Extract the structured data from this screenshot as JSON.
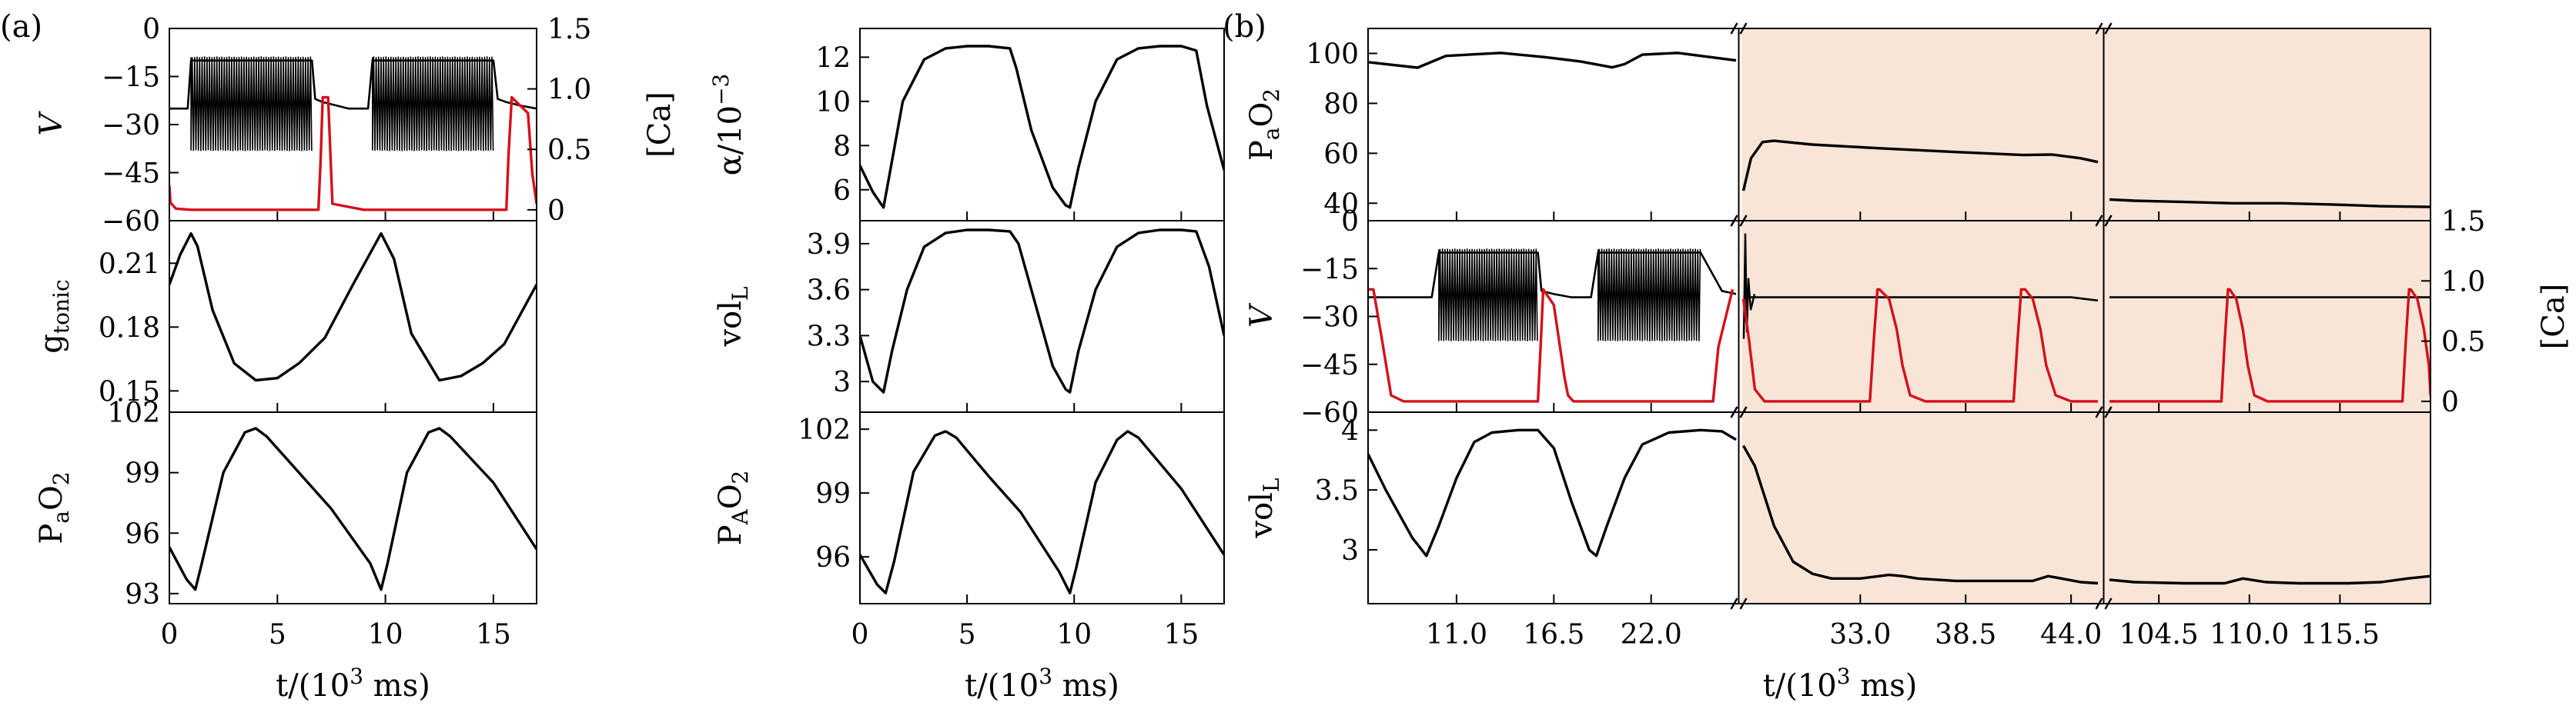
{
  "panel_labels": {
    "a": "(a)",
    "b": "(b)"
  },
  "colors": {
    "black_trace": "#000000",
    "red_trace": "#d4101a",
    "shade": "#f9e5d8"
  },
  "chart_data": [
    {
      "id": "a-V",
      "type": "line",
      "ylabel": "V",
      "y2label": "[Ca]",
      "xlim": [
        0,
        17
      ],
      "ylim": [
        -60,
        0
      ],
      "y2lim": [
        -0.09,
        1.5
      ],
      "yticks": [
        0,
        -15,
        -30,
        -45,
        -60
      ],
      "y2ticks": [
        1.5,
        1.0,
        0.5,
        0
      ],
      "series": [
        {
          "key": "V",
          "color": "#000000",
          "kind": "burst-voltage",
          "x": [
            0,
            0.5,
            0.85,
            1.0,
            6.6,
            6.75,
            7.1,
            7.7,
            8.3,
            9.2,
            9.4,
            15.0,
            15.2,
            15.6,
            16.2,
            17
          ],
          "y": [
            -25,
            -25,
            -25,
            -10,
            -10,
            -22,
            -23,
            -24,
            -25,
            -25,
            -10,
            -10,
            -22,
            -23,
            -24,
            -25
          ],
          "burst_windows": [
            [
              1.0,
              6.6
            ],
            [
              9.4,
              15.0
            ]
          ],
          "burst_min": -38,
          "burst_max": -9
        },
        {
          "key": "Ca",
          "color": "#d4101a",
          "axis": "right",
          "x": [
            0,
            0.05,
            0.3,
            1.0,
            3,
            6.9,
            7.0,
            7.1,
            7.35,
            7.55,
            9,
            12,
            15.6,
            15.7,
            15.85,
            16.6,
            16.8,
            17
          ],
          "y": [
            0.2,
            0.06,
            0.01,
            0.0,
            0.0,
            0.0,
            0.4,
            0.93,
            0.93,
            0.05,
            0.0,
            0.0,
            0.0,
            0.45,
            0.93,
            0.8,
            0.3,
            0.05
          ]
        }
      ]
    },
    {
      "id": "a-g",
      "type": "line",
      "ylabel": "g",
      "ylabel_sub": "tonic",
      "xlim": [
        0,
        17
      ],
      "ylim": [
        0.14,
        0.23
      ],
      "yticks": [
        0.21,
        0.18,
        0.15
      ],
      "series": [
        {
          "key": "gtonic",
          "color": "#000000",
          "x": [
            0,
            0.5,
            1.0,
            1.3,
            2.0,
            3.0,
            4.0,
            5,
            6,
            7.2,
            8.5,
            9.8,
            10.4,
            11.2,
            12.5,
            13.5,
            14.5,
            15.5,
            17
          ],
          "y": [
            0.2,
            0.214,
            0.224,
            0.218,
            0.188,
            0.163,
            0.155,
            0.156,
            0.163,
            0.175,
            0.2,
            0.224,
            0.212,
            0.177,
            0.155,
            0.157,
            0.163,
            0.172,
            0.2
          ]
        }
      ]
    },
    {
      "id": "a-PaO2",
      "type": "line",
      "ylabel": "P",
      "ylabel_sub": "a",
      "ylabel_tail": "O",
      "ylabel_tail_sub": "2",
      "xlim": [
        0,
        17
      ],
      "ylim": [
        92.5,
        102
      ],
      "yticks": [
        102,
        99,
        96,
        93
      ],
      "xticks": [
        0,
        5,
        10,
        15
      ],
      "xlabel": "t/(10",
      "xlabel_sup": "3",
      "xlabel_tail": " ms)",
      "series": [
        {
          "key": "PaO2",
          "color": "#000000",
          "x": [
            0,
            0.8,
            1.2,
            1.5,
            2.5,
            3.5,
            4.0,
            4.5,
            6,
            7.5,
            9.3,
            9.8,
            10.1,
            11,
            12,
            12.5,
            13,
            15,
            17
          ],
          "y": [
            95.3,
            93.7,
            93.2,
            94.5,
            99.0,
            101.0,
            101.2,
            100.8,
            99.0,
            97.2,
            94.5,
            93.2,
            94.5,
            99.0,
            101.0,
            101.2,
            100.8,
            98.5,
            95.2
          ]
        }
      ]
    },
    {
      "id": "a-alpha",
      "type": "line",
      "ylabel": "α/10",
      "ylabel_sup": "−3",
      "xlim": [
        0,
        17
      ],
      "ylim": [
        4.6,
        13.3
      ],
      "yticks": [
        12,
        10,
        8,
        6
      ],
      "series": [
        {
          "key": "alpha",
          "color": "#000000",
          "x": [
            0,
            0.6,
            1.1,
            1.4,
            2,
            3,
            4,
            5,
            6,
            7,
            7.3,
            8,
            9,
            9.6,
            9.8,
            10.2,
            11,
            12,
            13,
            14,
            15,
            15.7,
            16.2,
            17
          ],
          "y": [
            7.1,
            5.9,
            5.2,
            6.8,
            10,
            11.9,
            12.4,
            12.5,
            12.5,
            12.4,
            11.5,
            8.7,
            6.1,
            5.3,
            5.2,
            7,
            10,
            11.9,
            12.4,
            12.5,
            12.5,
            12.3,
            9.8,
            6.9
          ]
        }
      ]
    },
    {
      "id": "a-volL",
      "type": "line",
      "ylabel": "vol",
      "ylabel_sub": "L",
      "xlim": [
        0,
        17
      ],
      "ylim": [
        2.8,
        4.05
      ],
      "yticks": [
        3.9,
        3.6,
        3.3,
        3.0
      ],
      "series": [
        {
          "key": "volL",
          "color": "#000000",
          "x": [
            0,
            0.6,
            1.1,
            1.5,
            2.2,
            3,
            4,
            5,
            6,
            7,
            7.4,
            8,
            9,
            9.6,
            9.8,
            10.2,
            11,
            12,
            13,
            14,
            15,
            15.7,
            16.3,
            17
          ],
          "y": [
            3.3,
            3.0,
            2.93,
            3.2,
            3.6,
            3.88,
            3.97,
            3.99,
            3.99,
            3.98,
            3.9,
            3.6,
            3.1,
            2.95,
            2.93,
            3.2,
            3.6,
            3.88,
            3.97,
            3.99,
            3.99,
            3.98,
            3.75,
            3.3
          ]
        }
      ]
    },
    {
      "id": "a-PAO2",
      "type": "line",
      "ylabel": "P",
      "ylabel_sub": "A",
      "ylabel_tail": "O",
      "ylabel_tail_sub": "2",
      "xlim": [
        0,
        17
      ],
      "ylim": [
        93.8,
        102.8
      ],
      "yticks": [
        102,
        99,
        96
      ],
      "xticks": [
        0,
        5,
        10,
        15
      ],
      "xlabel": "t/(10",
      "xlabel_sup": "3",
      "xlabel_tail": " ms)",
      "series": [
        {
          "key": "PAO2",
          "color": "#000000",
          "x": [
            0,
            0.8,
            1.2,
            1.6,
            2.5,
            3.5,
            4.0,
            4.5,
            6,
            7.5,
            9.3,
            9.8,
            10.1,
            11,
            12,
            12.5,
            13,
            15,
            17
          ],
          "y": [
            96.1,
            94.7,
            94.3,
            95.8,
            100,
            101.7,
            101.9,
            101.6,
            99.8,
            98.1,
            95.3,
            94.3,
            95.5,
            99.5,
            101.5,
            101.9,
            101.6,
            99.2,
            96.1
          ]
        }
      ]
    },
    {
      "id": "b-PaO2",
      "type": "line",
      "broken_x": true,
      "ylabel": "P",
      "ylabel_sub": "a",
      "ylabel_tail": "O",
      "ylabel_tail_sub": "2",
      "ylim": [
        33,
        110
      ],
      "yticks": [
        100,
        80,
        60,
        40
      ],
      "shaded": "from-break-1",
      "series": [
        {
          "key": "PaO2b",
          "color": "#000000",
          "x": [
            6.0,
            8.8,
            10.4,
            13.5,
            16.0,
            18.0,
            19.8,
            20.5,
            21.5,
            23.5,
            26.8,
            26.9,
            27.3,
            27.9,
            28.5,
            30.5,
            34,
            38,
            41.5,
            43,
            44.5,
            45.4,
            101.5,
            103,
            106,
            109,
            112,
            115,
            118,
            121
          ],
          "y": [
            96.5,
            94.3,
            99.0,
            100.2,
            98.5,
            96.8,
            94.4,
            95.7,
            99.5,
            100.2,
            97.2,
            45,
            58,
            64.5,
            65,
            63.5,
            62,
            60.5,
            59.3,
            59.5,
            58,
            56.5,
            41.5,
            41,
            40.5,
            40,
            40,
            39.5,
            38.8,
            38.5
          ]
        }
      ]
    },
    {
      "id": "b-V",
      "type": "line",
      "broken_x": true,
      "ylabel": "V",
      "y2label": "[Ca]",
      "ylim": [
        -60,
        0
      ],
      "y2lim": [
        -0.09,
        1.5
      ],
      "yticks": [
        0,
        -15,
        -30,
        -45,
        -60
      ],
      "y2ticks": [
        1.5,
        1.0,
        0.5,
        0
      ],
      "shaded": "from-break-1",
      "series": [
        {
          "key": "Vb",
          "color": "#000000",
          "kind": "burst-voltage",
          "x": [
            6.0,
            9.6,
            10.0,
            15.6,
            15.8,
            16.5,
            17.5,
            18.6,
            19.0,
            24.8,
            26.0,
            26.8,
            26.9,
            28.0,
            44.0,
            45.4,
            101.5,
            121
          ],
          "y": [
            -24,
            -24,
            -10,
            -10,
            -22,
            -23,
            -24,
            -24,
            -10,
            -10,
            -22,
            -23,
            -24,
            -24,
            -24,
            -25,
            -24,
            -24
          ],
          "burst_windows": [
            [
              10.0,
              15.6
            ],
            [
              19.0,
              24.8
            ]
          ],
          "burst_min": -37.5,
          "burst_max": -9,
          "spike_after_break": true
        },
        {
          "key": "Cab",
          "color": "#d4101a",
          "axis": "right",
          "x": [
            6.0,
            6.3,
            6.8,
            7.3,
            8,
            12,
            15.6,
            15.75,
            15.9,
            16.5,
            17.1,
            17.3,
            17.6,
            19,
            22,
            24.8,
            25.5,
            25.8,
            26.6,
            26.9,
            27.2,
            27.5,
            28.0,
            30.5,
            31.5,
            33.5,
            33.7,
            33.9,
            34.0,
            34.5,
            34.9,
            35.2,
            35.6,
            36.4,
            40,
            41.0,
            41.2,
            41.4,
            41.6,
            42,
            42.4,
            42.7,
            43.2,
            44.0,
            45.4,
            101.5,
            105,
            108.3,
            108.5,
            108.7,
            108.8,
            109.2,
            109.6,
            109.9,
            110.3,
            111.1,
            116,
            119.3,
            119.5,
            119.7,
            119.8,
            120.2,
            120.6,
            120.9,
            121
          ],
          "y": [
            0.93,
            0.93,
            0.5,
            0.05,
            0.0,
            0.0,
            0.0,
            0.45,
            0.93,
            0.8,
            0.2,
            0.05,
            0.0,
            0.0,
            0.0,
            0.0,
            0.0,
            0.45,
            0.93,
            0.85,
            0.5,
            0.1,
            0.0,
            0.0,
            0.0,
            0.0,
            0.5,
            0.93,
            0.93,
            0.85,
            0.6,
            0.3,
            0.05,
            0.0,
            0.0,
            0.0,
            0.5,
            0.93,
            0.93,
            0.85,
            0.6,
            0.3,
            0.05,
            0.0,
            0.0,
            0.0,
            0.0,
            0.0,
            0.5,
            0.93,
            0.93,
            0.85,
            0.6,
            0.3,
            0.05,
            0.0,
            0.0,
            0.0,
            0.5,
            0.93,
            0.93,
            0.85,
            0.6,
            0.3,
            0.05
          ]
        }
      ]
    },
    {
      "id": "b-volL",
      "type": "line",
      "broken_x": true,
      "ylabel": "vol",
      "ylabel_sub": "L",
      "ylim": [
        2.55,
        4.15
      ],
      "yticks": [
        4.0,
        3.5,
        3.0
      ],
      "shaded": "from-break-1",
      "xlabel": "t/(10",
      "xlabel_sup": "3",
      "xlabel_tail": " ms)",
      "x_segments": [
        {
          "xlim": [
            6.0,
            26.8
          ],
          "ticks": [
            11.0,
            16.5,
            22.0
          ],
          "tick_labels": [
            "11.0",
            "16.5",
            "22.0"
          ]
        },
        {
          "xlim": [
            26.8,
            45.4
          ],
          "ticks": [
            33.0,
            38.5,
            44.0
          ],
          "tick_labels": [
            "33.0",
            "38.5",
            "44.0"
          ]
        },
        {
          "xlim": [
            101.5,
            121.0
          ],
          "ticks": [
            104.5,
            110.0,
            115.5
          ],
          "tick_labels": [
            "104.5",
            "110.0",
            "115.5"
          ]
        }
      ],
      "series": [
        {
          "key": "volLb",
          "color": "#000000",
          "x": [
            6.0,
            7.0,
            8.5,
            9.3,
            10.0,
            11.0,
            12.0,
            13.0,
            14.5,
            15.6,
            16.5,
            17.5,
            18.5,
            18.9,
            19.5,
            20.5,
            21.5,
            23.0,
            24.8,
            26.0,
            26.8,
            26.9,
            27.5,
            28.5,
            29.5,
            30.5,
            31.5,
            33.0,
            34.5,
            35.2,
            36,
            38,
            40,
            41,
            42,
            42.8,
            43.5,
            44.5,
            45.4,
            101.5,
            103,
            106,
            108.5,
            109.6,
            111,
            113,
            116,
            118,
            119.6,
            121
          ],
          "y": [
            3.8,
            3.5,
            3.1,
            2.95,
            3.2,
            3.6,
            3.9,
            3.98,
            4.0,
            4.0,
            3.85,
            3.4,
            3.0,
            2.95,
            3.2,
            3.6,
            3.88,
            3.98,
            4.0,
            3.99,
            3.92,
            3.87,
            3.7,
            3.2,
            2.9,
            2.8,
            2.76,
            2.76,
            2.79,
            2.78,
            2.76,
            2.74,
            2.74,
            2.74,
            2.74,
            2.78,
            2.76,
            2.73,
            2.72,
            2.75,
            2.73,
            2.72,
            2.72,
            2.76,
            2.73,
            2.72,
            2.72,
            2.73,
            2.76,
            2.78
          ]
        }
      ]
    }
  ]
}
